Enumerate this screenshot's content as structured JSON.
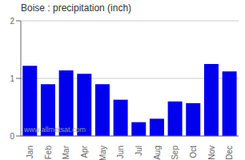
{
  "chart_data": {
    "type": "bar",
    "title": "Boise : precipitation (inch)",
    "categories": [
      "Jan",
      "Feb",
      "Mar",
      "Apr",
      "May",
      "Jun",
      "Jul",
      "Aug",
      "Sep",
      "Oct",
      "Nov",
      "Dec"
    ],
    "values": [
      1.22,
      0.9,
      1.14,
      1.08,
      0.9,
      0.63,
      0.24,
      0.3,
      0.6,
      0.57,
      1.25,
      1.12
    ],
    "color": "#0000ee",
    "ylim": [
      0,
      2
    ],
    "yticks": [
      0,
      1,
      2
    ],
    "grid": true,
    "annotation": "www.allmetsat.com"
  }
}
